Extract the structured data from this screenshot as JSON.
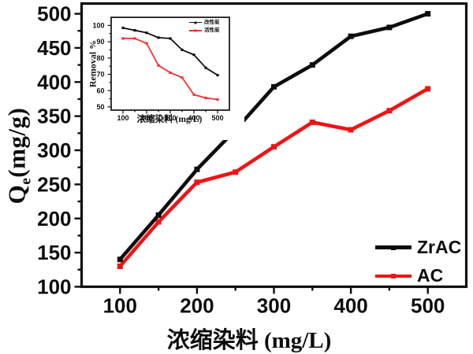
{
  "figure": {
    "background": "#ffffff",
    "text_color": "#0d0d0d"
  },
  "colors": {
    "zrac_black": "#0d0d0d",
    "ac_red": "#ed1515",
    "inset_black": "#111111",
    "inset_red": "#ee3333"
  },
  "chart_data": [
    {
      "type": "line",
      "title": "",
      "xlabel": "浓缩染料 (mg/L)",
      "ylabel": "Qe (mg/g)",
      "ylabel_parts": {
        "base": "Q",
        "sub": "e",
        "rest": "(mg/g)"
      },
      "x": [
        100,
        150,
        200,
        250,
        300,
        350,
        400,
        450,
        500
      ],
      "series": [
        {
          "name": "ZrAC",
          "color": "#0d0d0d",
          "values": [
            140,
            205,
            272,
            330,
            393,
            425,
            467,
            480,
            500
          ]
        },
        {
          "name": "AC",
          "color": "#ed1515",
          "values": [
            130,
            195,
            253,
            268,
            305,
            341,
            330,
            358,
            390
          ]
        }
      ],
      "xlim": [
        50,
        550
      ],
      "ylim": [
        100,
        515
      ],
      "xticks": [
        100,
        200,
        300,
        400,
        500
      ],
      "yticks": [
        100,
        150,
        200,
        250,
        300,
        350,
        400,
        450,
        500
      ],
      "grid": false,
      "legend_position": "right-middle",
      "marker": "square"
    },
    {
      "type": "line",
      "title": "",
      "xlabel": "浓缩染料 (mg/L)",
      "ylabel": "Removal %",
      "x": [
        100,
        150,
        200,
        250,
        300,
        350,
        400,
        450,
        500
      ],
      "series": [
        {
          "name": "改性炭",
          "color": "#111111",
          "values": [
            98.5,
            97,
            95.5,
            92.5,
            92,
            85,
            82,
            74,
            69.5
          ]
        },
        {
          "name": "活性炭",
          "color": "#ee3333",
          "values": [
            92,
            92,
            89,
            75.5,
            71,
            68,
            57.5,
            55.5,
            54.5
          ]
        }
      ],
      "xlim": [
        50,
        550
      ],
      "ylim": [
        48,
        105
      ],
      "xticks": [
        100,
        200,
        300,
        400,
        500
      ],
      "yticks": [
        50,
        60,
        70,
        80,
        90,
        100
      ],
      "grid": false,
      "legend_position": "top-right",
      "marker": "square"
    }
  ]
}
